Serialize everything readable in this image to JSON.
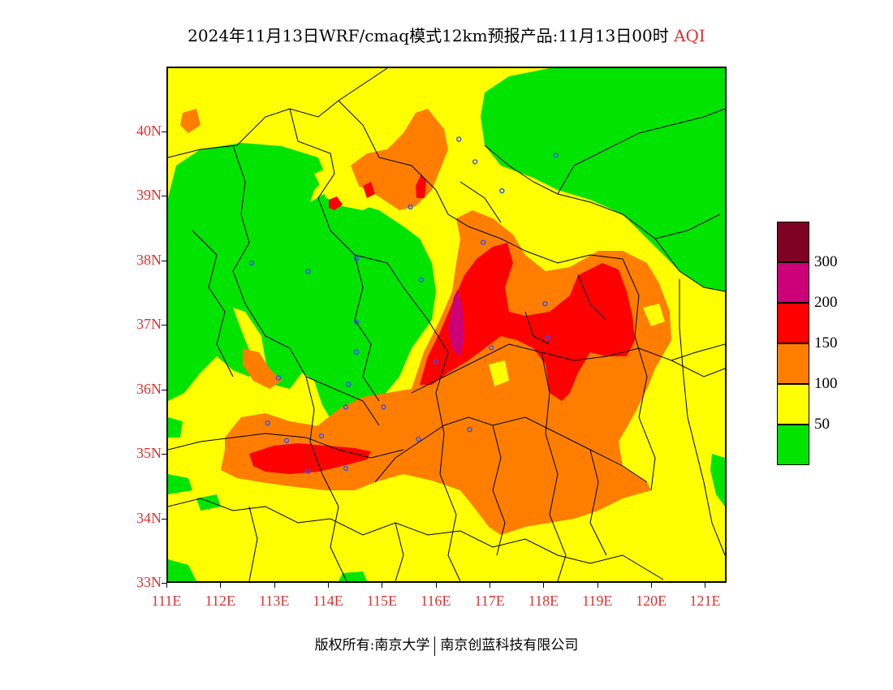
{
  "title": {
    "main": "2024年11月13日WRF/cmaq模式12km预报产品:11月13日00时",
    "variable": "AQI"
  },
  "axes": {
    "lat_labels": [
      "33N",
      "34N",
      "35N",
      "36N",
      "37N",
      "38N",
      "39N",
      "40N"
    ],
    "lon_labels": [
      "111E",
      "112E",
      "113E",
      "114E",
      "115E",
      "116E",
      "117E",
      "118E",
      "119E",
      "120E",
      "121E"
    ],
    "lat_range": [
      33,
      41
    ],
    "lon_range": [
      111,
      121.4
    ]
  },
  "legend": {
    "labels": [
      "50",
      "100",
      "150",
      "200",
      "300"
    ],
    "colors": [
      "#00e400",
      "#ffff00",
      "#ff7e00",
      "#ff0000",
      "#cc0077",
      "#7e0023"
    ]
  },
  "colors": {
    "good": "#00e400",
    "moderate": "#ffff00",
    "usg": "#ff7e00",
    "unhealthy": "#ff0000",
    "very_unhealthy": "#cc0077",
    "hazardous": "#7e0023",
    "label": "#e03030",
    "station": "#3050ff"
  },
  "stations": [
    [
      116.4,
      39.9
    ],
    [
      117.2,
      39.1
    ],
    [
      116.7,
      39.55
    ],
    [
      118.2,
      39.65
    ],
    [
      115.5,
      38.85
    ],
    [
      112.55,
      37.98
    ],
    [
      113.6,
      37.85
    ],
    [
      114.5,
      38.05
    ],
    [
      115.7,
      37.72
    ],
    [
      116.85,
      38.3
    ],
    [
      117.0,
      36.67
    ],
    [
      118.05,
      36.82
    ],
    [
      118.0,
      37.35
    ],
    [
      114.5,
      36.6
    ],
    [
      114.5,
      37.07
    ],
    [
      114.35,
      36.1
    ],
    [
      113.05,
      36.2
    ],
    [
      115.97,
      36.45
    ],
    [
      114.3,
      35.75
    ],
    [
      115.0,
      35.75
    ],
    [
      112.85,
      35.5
    ],
    [
      113.2,
      35.23
    ],
    [
      113.85,
      35.3
    ],
    [
      114.3,
      34.8
    ],
    [
      113.6,
      34.75
    ],
    [
      115.65,
      35.25
    ],
    [
      116.6,
      35.4
    ]
  ],
  "footer": {
    "copyright": "版权所有:南京大学",
    "company": "南京创蓝科技有限公司"
  }
}
